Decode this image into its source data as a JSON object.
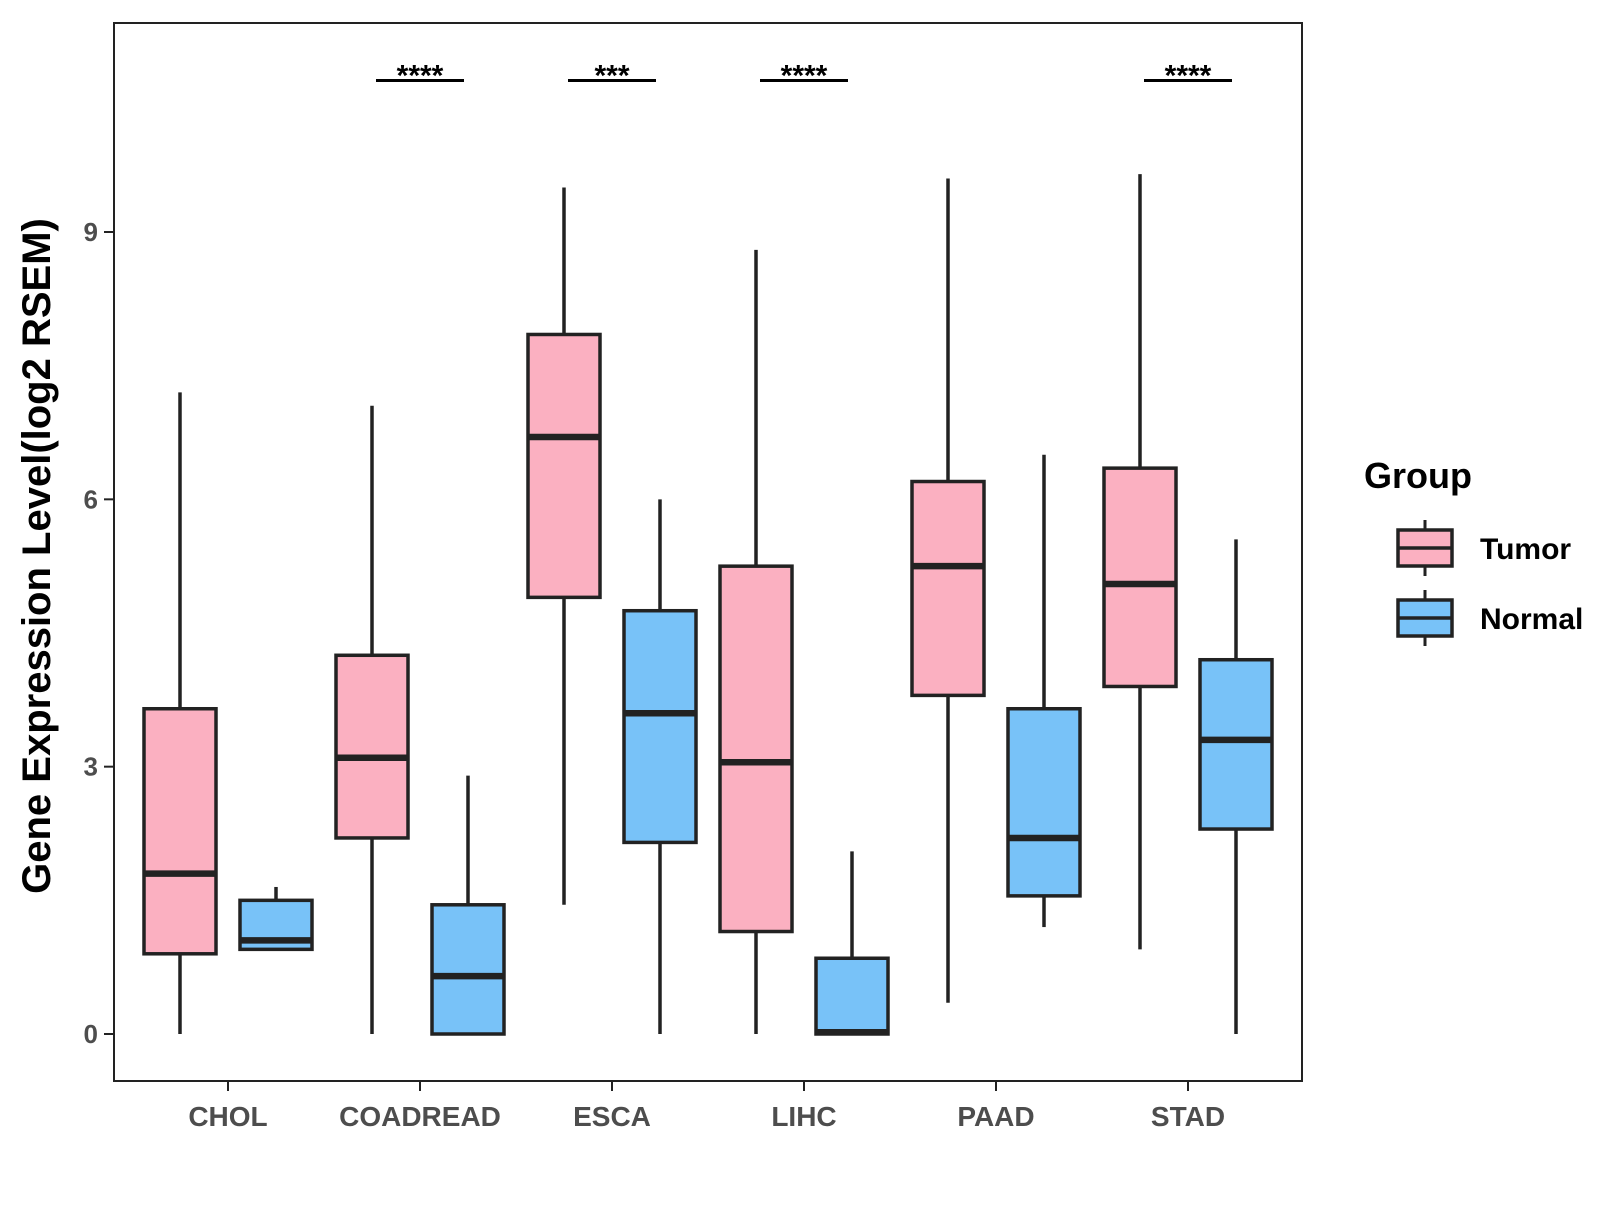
{
  "chart_data": {
    "type": "boxplot",
    "title": "",
    "xlabel": "",
    "ylabel": "Gene Expression Level(log2 RSEM)",
    "ylim": [
      -0.5,
      11.3
    ],
    "yticks": [
      0,
      3,
      6,
      9
    ],
    "ytick_labels": [
      "0",
      "3",
      "6",
      "9"
    ],
    "grid": false,
    "categories": [
      "CHOL",
      "COADREAD",
      "ESCA",
      "LIHC",
      "PAAD",
      "STAD"
    ],
    "series": [
      {
        "name": "Tumor",
        "color": "#FBB0C1",
        "boxes": [
          {
            "min": 0.0,
            "q1": 0.9,
            "median": 1.8,
            "q3": 3.65,
            "max": 7.2
          },
          {
            "min": 0.0,
            "q1": 2.2,
            "median": 3.1,
            "q3": 4.25,
            "max": 7.05
          },
          {
            "min": 1.45,
            "q1": 4.9,
            "median": 6.7,
            "q3": 7.85,
            "max": 9.5
          },
          {
            "min": 0.0,
            "q1": 1.15,
            "median": 3.05,
            "q3": 5.25,
            "max": 8.8
          },
          {
            "min": 0.35,
            "q1": 3.8,
            "median": 5.25,
            "q3": 6.2,
            "max": 9.6
          },
          {
            "min": 0.95,
            "q1": 3.9,
            "median": 5.05,
            "q3": 6.35,
            "max": 9.65
          }
        ]
      },
      {
        "name": "Normal",
        "color": "#78C2F8",
        "boxes": [
          {
            "min": 0.95,
            "q1": 0.95,
            "median": 1.05,
            "q3": 1.5,
            "max": 1.65
          },
          {
            "min": 0.0,
            "q1": 0.0,
            "median": 0.65,
            "q3": 1.45,
            "max": 2.9
          },
          {
            "min": 0.0,
            "q1": 2.15,
            "median": 3.6,
            "q3": 4.75,
            "max": 6.0
          },
          {
            "min": 0.0,
            "q1": 0.0,
            "median": 0.02,
            "q3": 0.85,
            "max": 2.05
          },
          {
            "min": 1.2,
            "q1": 1.55,
            "median": 2.2,
            "q3": 3.65,
            "max": 6.5
          },
          {
            "min": 0.0,
            "q1": 2.3,
            "median": 3.3,
            "q3": 4.2,
            "max": 5.55
          }
        ]
      }
    ],
    "significance": [
      {
        "category": "CHOL",
        "label": ""
      },
      {
        "category": "COADREAD",
        "label": "****"
      },
      {
        "category": "ESCA",
        "label": "***"
      },
      {
        "category": "LIHC",
        "label": "****"
      },
      {
        "category": "PAAD",
        "label": ""
      },
      {
        "category": "STAD",
        "label": "****"
      }
    ],
    "significance_level": 10.7,
    "legend": {
      "title": "Group",
      "position": "right",
      "entries": [
        "Tumor",
        "Normal"
      ]
    }
  }
}
